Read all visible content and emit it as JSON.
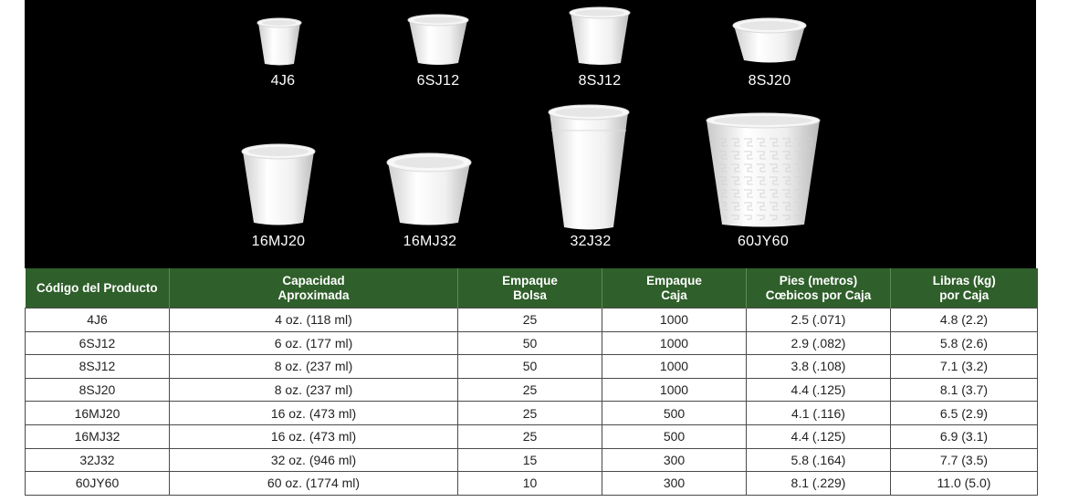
{
  "colors": {
    "hero_background": "#000000",
    "header_background": "#2f5f2a",
    "header_text": "#ffffff",
    "cup_foam": "#f2f2f2"
  },
  "cups": [
    {
      "code": "4J6",
      "icon": "foam-cup-icon"
    },
    {
      "code": "6SJ12",
      "icon": "foam-cup-icon"
    },
    {
      "code": "8SJ12",
      "icon": "foam-cup-icon"
    },
    {
      "code": "8SJ20",
      "icon": "foam-bowl-icon"
    },
    {
      "code": "16MJ20",
      "icon": "foam-cup-icon"
    },
    {
      "code": "16MJ32",
      "icon": "foam-bowl-icon"
    },
    {
      "code": "32J32",
      "icon": "tall-foam-cup-icon"
    },
    {
      "code": "60JY60",
      "icon": "embossed-foam-container-icon"
    }
  ],
  "table": {
    "headers": [
      [
        "Código del Producto"
      ],
      [
        "Capacidad",
        "Aproximada"
      ],
      [
        "Empaque",
        "Bolsa"
      ],
      [
        "Empaque",
        "Caja"
      ],
      [
        "Pies (metros)",
        "Cœbicos por Caja"
      ],
      [
        "Libras (kg)",
        "por Caja"
      ]
    ],
    "rows": [
      [
        "4J6",
        "4 oz. (118 ml)",
        "25",
        "1000",
        "2.5 (.071)",
        "4.8 (2.2)"
      ],
      [
        "6SJ12",
        "6 oz. (177 ml)",
        "50",
        "1000",
        "2.9 (.082)",
        "5.8 (2.6)"
      ],
      [
        "8SJ12",
        "8 oz. (237 ml)",
        "50",
        "1000",
        "3.8 (.108)",
        "7.1 (3.2)"
      ],
      [
        "8SJ20",
        "8 oz. (237 ml)",
        "25",
        "1000",
        "4.4 (.125)",
        "8.1 (3.7)"
      ],
      [
        "16MJ20",
        "16 oz. (473 ml)",
        "25",
        "500",
        "4.1 (.116)",
        "6.5 (2.9)"
      ],
      [
        "16MJ32",
        "16 oz. (473 ml)",
        "25",
        "500",
        "4.4 (.125)",
        "6.9 (3.1)"
      ],
      [
        "32J32",
        "32 oz. (946 ml)",
        "15",
        "300",
        "5.8 (.164)",
        "7.7 (3.5)"
      ],
      [
        "60JY60",
        "60 oz. (1774 ml)",
        "10",
        "300",
        "8.1 (.229)",
        "11.0 (5.0)"
      ]
    ]
  }
}
